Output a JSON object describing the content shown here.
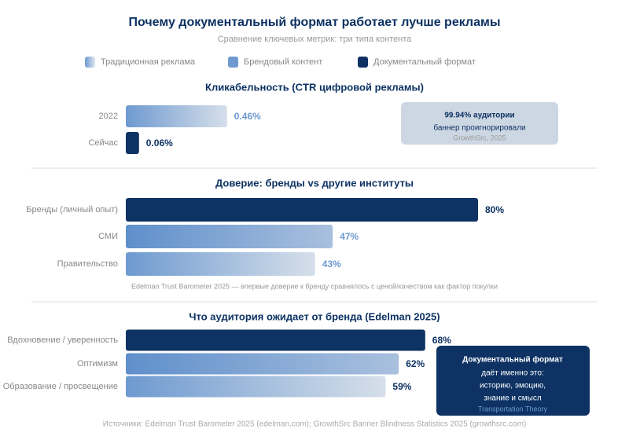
{
  "title": "Почему документальный формат работает лучше рекламы",
  "subtitle": "Сравнение ключевых метрик: три типа контента",
  "legend": [
    {
      "name": "Традиционная реклама",
      "colors": [
        "#6e9ad0",
        "#dfe6ef"
      ]
    },
    {
      "name": "Брендовый контент",
      "colors": [
        "#6e9ad0",
        "#6e9ad0"
      ]
    },
    {
      "name": "Документальный формат",
      "colors": [
        "#0d3263",
        "#0d3263"
      ]
    }
  ],
  "chart_data": [
    {
      "type": "bar",
      "orientation": "horizontal",
      "title": "Кликабельность (CTR цифровой рекламы)",
      "categories": [
        "2022",
        "Сейчас"
      ],
      "values": [
        0.46,
        0.06
      ],
      "value_labels": [
        "0.46%",
        "0.06%"
      ],
      "colors": [
        [
          "#6e9ad0",
          "#d6dfea"
        ],
        [
          "#0d3263",
          "#0d3263"
        ]
      ],
      "label_colors": [
        "#6e9ad0",
        "#0d3263"
      ],
      "xlim": [
        0,
        2
      ],
      "annotation": {
        "lines": [
          "99.94% аудитории",
          "баннер проигнорировали",
          "GrowthSrc, 2025"
        ]
      }
    },
    {
      "type": "bar",
      "orientation": "horizontal",
      "title": "Доверие: бренды vs другие институты",
      "categories": [
        "Бренды (личный опыт)",
        "СМИ",
        "Правительство"
      ],
      "values": [
        80,
        47,
        43
      ],
      "value_labels": [
        "80%",
        "47%",
        "43%"
      ],
      "colors": [
        [
          "#0d3263",
          "#0d3263"
        ],
        [
          "#5f8fcb",
          "#a9c0de"
        ],
        [
          "#6e9ad0",
          "#d6dfea"
        ]
      ],
      "label_colors": [
        "#0d3263",
        "#6e9ad0",
        "#6e9ad0"
      ],
      "xlim": [
        0,
        100
      ],
      "note": "Edelman Trust Barometer 2025 — впервые доверие к бренду сравнялось с ценой/качеством как фактор покупки"
    },
    {
      "type": "bar",
      "orientation": "horizontal",
      "title": "Что аудитория ожидает от бренда (Edelman 2025)",
      "categories": [
        "Вдохновение / уверенность",
        "Оптимизм",
        "Образование / просвещение"
      ],
      "values": [
        68,
        62,
        59
      ],
      "value_labels": [
        "68%",
        "62%",
        "59%"
      ],
      "colors": [
        [
          "#0d3263",
          "#0d3263"
        ],
        [
          "#5f8fcb",
          "#a9c0de"
        ],
        [
          "#6e9ad0",
          "#d6dfea"
        ]
      ],
      "label_colors": [
        "#0d3263",
        "#0d3263",
        "#0d3263"
      ],
      "xlim": [
        0,
        100
      ],
      "annotation": {
        "lines": [
          "Документальный формат",
          "даёт именно это:",
          "историю, эмоцию,",
          "знание и смысл",
          "Transportation Theory"
        ]
      }
    }
  ],
  "source": "Источники: Edelman Trust Barometer 2025 (edelman.com); GrowthSrc Banner Blindness Statistics 2025 (growthsrc.com)"
}
